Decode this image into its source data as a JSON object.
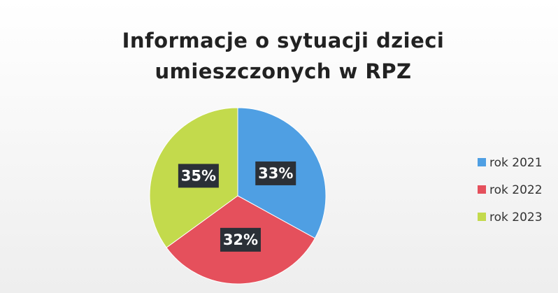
{
  "chart_data": {
    "type": "pie",
    "title": [
      "Informacje o sytuacji dzieci",
      "umieszczonych w RPZ"
    ],
    "categories": [
      "rok 2021",
      "rok 2022",
      "rok 2023"
    ],
    "values": [
      33,
      32,
      35
    ],
    "value_labels": [
      "33%",
      "32%",
      "35%"
    ],
    "colors": [
      "#4f9fe3",
      "#e5505c",
      "#c3da4c"
    ],
    "legend": "right"
  }
}
